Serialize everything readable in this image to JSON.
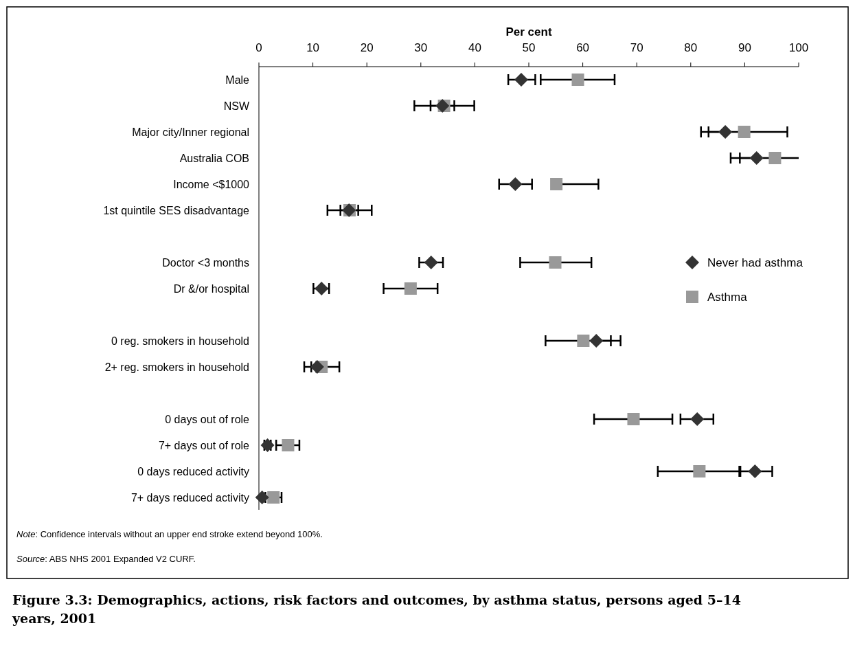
{
  "chart_data": {
    "type": "scatter",
    "orientation": "horizontal",
    "title": "Figure 3.3: Demographics, actions, risk factors and outcomes, by asthma status, persons aged 5–14 years, 2001",
    "xlabel": "Per cent",
    "categories": [
      "Male",
      "NSW",
      "Major city/Inner regional",
      "Australia COB",
      "Income <$1000",
      "1st quintile SES disadvantage",
      null,
      "Doctor <3 months",
      "Dr &/or hospital",
      null,
      "0 reg. smokers in household",
      "2+ reg. smokers in household",
      null,
      "0 days out of role",
      "7+ days out of role",
      "0 days reduced activity",
      "7+ days reduced activity"
    ],
    "xlim": [
      0,
      100
    ],
    "xticks": [
      0,
      10,
      20,
      30,
      40,
      50,
      60,
      70,
      80,
      90,
      100
    ],
    "legend": "right",
    "grid": false,
    "series": [
      {
        "name": "Never had asthma",
        "color": "#333333",
        "marker": "diamond",
        "values": [
          48.6,
          34.0,
          86.4,
          92.2,
          47.5,
          16.7,
          null,
          31.9,
          11.6,
          null,
          62.5,
          10.8,
          null,
          81.2,
          1.6,
          91.9,
          0.6
        ],
        "errors": [
          [
            46.2,
            51.2
          ],
          [
            31.8,
            36.2
          ],
          [
            83.3,
            86.4
          ],
          [
            89.1,
            92.2
          ],
          [
            44.5,
            50.6
          ],
          [
            15.1,
            18.4
          ],
          null,
          [
            29.7,
            34.1
          ],
          [
            10.1,
            13.0
          ],
          null,
          [
            62.5,
            65.2
          ],
          [
            9.7,
            10.8
          ],
          null,
          [
            78.1,
            84.2
          ],
          [
            1.0,
            2.2
          ],
          [
            89.2,
            95.1
          ],
          null
        ]
      },
      {
        "name": "Asthma",
        "color": "#999999",
        "marker": "square",
        "values": [
          59.1,
          34.3,
          89.9,
          95.6,
          55.1,
          16.8,
          null,
          54.9,
          28.1,
          null,
          60.1,
          11.6,
          null,
          69.4,
          5.4,
          81.6,
          2.7
        ],
        "errors": [
          [
            52.2,
            65.9
          ],
          [
            28.8,
            39.9
          ],
          [
            81.9,
            97.9
          ],
          [
            87.4,
            100
          ],
          [
            55.1,
            62.9
          ],
          [
            12.7,
            20.9
          ],
          null,
          [
            48.4,
            61.6
          ],
          [
            23.1,
            33.1
          ],
          null,
          [
            53.1,
            67.0
          ],
          [
            8.4,
            14.9
          ],
          null,
          [
            62.1,
            76.6
          ],
          [
            3.2,
            7.5
          ],
          [
            73.9,
            89.0
          ],
          [
            1.2,
            4.2
          ]
        ]
      }
    ],
    "annotations": [
      "Note: Confidence intervals without an upper end stroke extend beyond 100%.",
      "Source: ABS NHS 2001 Expanded V2 CURF."
    ]
  }
}
